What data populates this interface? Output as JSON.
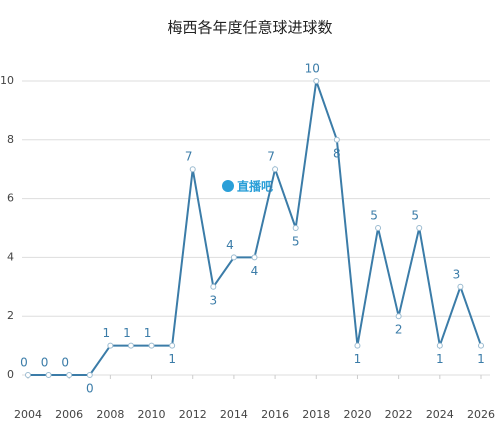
{
  "chart_data": {
    "type": "line",
    "title": "梅西各年度任意球进球数",
    "watermark": "直播吧",
    "x": [
      2004,
      2005,
      2006,
      2007,
      2008,
      2009,
      2010,
      2011,
      2012,
      2013,
      2014,
      2015,
      2016,
      2017,
      2018,
      2019,
      2020,
      2021,
      2022,
      2023,
      2024,
      2025,
      2026
    ],
    "series": [
      {
        "name": "任意球进球",
        "color": "#3b7ca8",
        "values": [
          0,
          0,
          0,
          0,
          1,
          1,
          1,
          1,
          7,
          3,
          4,
          4,
          7,
          5,
          10,
          8,
          1,
          5,
          2,
          5,
          1,
          3,
          1
        ]
      }
    ],
    "xlim": [
      2004,
      2026
    ],
    "xticks": [
      2004,
      2006,
      2008,
      2010,
      2012,
      2014,
      2016,
      2018,
      2020,
      2022,
      2024,
      2026
    ],
    "ylim": [
      0,
      10
    ],
    "yticks": [
      0,
      2,
      4,
      6,
      8,
      10
    ],
    "grid": true
  }
}
